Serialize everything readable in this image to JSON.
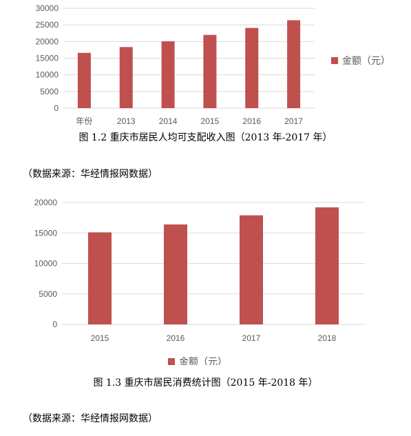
{
  "chart_data": [
    {
      "type": "bar",
      "categories": [
        "年份",
        "2013",
        "2014",
        "2015",
        "2016",
        "2017"
      ],
      "values": [
        16600,
        18350,
        20100,
        22000,
        24100,
        26400
      ],
      "series": [
        {
          "name": "金额（元）",
          "color": "#c0504d"
        }
      ],
      "ylim": [
        0,
        30000
      ],
      "yticks": [
        0,
        5000,
        10000,
        15000,
        20000,
        25000,
        30000
      ],
      "grid": true,
      "legend": "right"
    },
    {
      "type": "bar",
      "categories": [
        "2015",
        "2016",
        "2017",
        "2018"
      ],
      "values": [
        15100,
        16400,
        17900,
        19200
      ],
      "series": [
        {
          "name": "金额（元）",
          "color": "#c0504d"
        }
      ],
      "ylim": [
        0,
        20000
      ],
      "yticks": [
        0,
        5000,
        10000,
        15000,
        20000
      ],
      "grid": true,
      "legend": "bottom"
    }
  ],
  "captions": {
    "fig1": "图 1.2  重庆市居民人均可支配收入图（2013 年-2017 年）",
    "fig2": "图 1.3  重庆市居民消费统计图（2015 年-2018 年）"
  },
  "sources": {
    "fig1": "（数据来源：华经情报网数据）",
    "fig2": "（数据来源：华经情报网数据）"
  }
}
